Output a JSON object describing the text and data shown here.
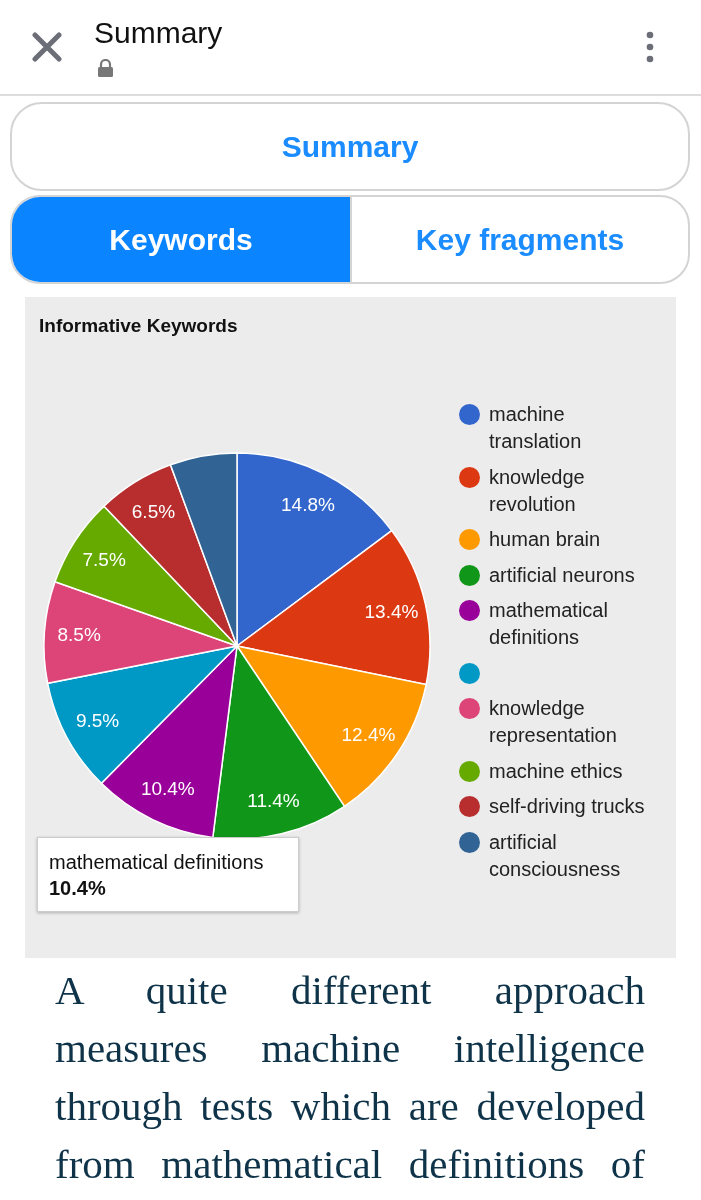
{
  "chart_data": {
    "type": "pie",
    "title": "Informative Keywords",
    "categories": [
      "machine translation",
      "knowledge revolution",
      "human brain",
      "artificial neurons",
      "mathematical definitions",
      null,
      "knowledge representation",
      "machine ethics",
      "self-driving trucks",
      "artificial consciousness"
    ],
    "values": [
      14.8,
      13.4,
      12.4,
      11.4,
      10.4,
      9.5,
      8.5,
      7.5,
      6.5,
      5.6
    ],
    "colors": [
      "#3366cc",
      "#dc3912",
      "#ff9900",
      "#109618",
      "#990099",
      "#0099c6",
      "#dd4477",
      "#66aa00",
      "#b82e2e",
      "#316395"
    ],
    "value_labels": [
      "14.8%",
      "13.4%",
      "12.4%",
      "11.4%",
      "10.4%",
      "9.5%",
      "8.5%",
      "7.5%",
      "6.5%",
      null
    ],
    "legend": "right",
    "annotations": [
      "Summary",
      "Summary",
      "Keywords",
      "Key fragments",
      "mathematical definitions",
      "10.4%",
      "A quite different approach measures machine intelligence through tests which are developed from mathematical definitions of"
    ]
  }
}
